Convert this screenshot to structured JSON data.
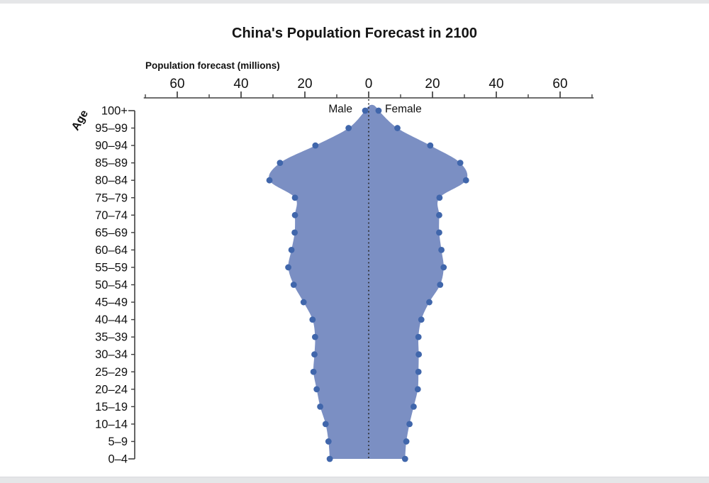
{
  "page": {
    "title": "China's Population Forecast in 2100"
  },
  "chart_data": {
    "type": "area",
    "variant": "population-pyramid",
    "title": "China's Population Forecast in 2100",
    "x_axis": {
      "label": "Population forecast (millions)",
      "tick_labels": [
        "60",
        "40",
        "20",
        "0",
        "20",
        "40",
        "60"
      ],
      "tick_values": [
        -60,
        -40,
        -20,
        0,
        20,
        40,
        60
      ],
      "minor_tick_values": [
        -70,
        -50,
        -30,
        -10,
        10,
        30,
        50,
        70
      ],
      "range": [
        -70.5,
        70.5
      ],
      "grid": false
    },
    "y_axis": {
      "label": "Age",
      "categories": [
        "100+",
        "95–99",
        "90–94",
        "85–89",
        "80–84",
        "75–79",
        "70–74",
        "65–69",
        "60–64",
        "55–59",
        "50–54",
        "45–49",
        "40–44",
        "35–39",
        "30–34",
        "25–29",
        "20–24",
        "15–19",
        "10–14",
        "5–9",
        "0–4"
      ]
    },
    "series": [
      {
        "name": "Male",
        "side": "left",
        "values": [
          1.1,
          6.3,
          16.7,
          27.8,
          31.1,
          23.1,
          23.1,
          23.2,
          24.2,
          25.2,
          23.5,
          20.4,
          17.6,
          16.8,
          17.0,
          17.3,
          16.3,
          15.2,
          13.5,
          12.6,
          12.2
        ]
      },
      {
        "name": "Female",
        "side": "right",
        "values": [
          3.1,
          9.0,
          19.3,
          28.7,
          30.5,
          22.2,
          22.1,
          22.1,
          22.8,
          23.5,
          22.4,
          19.0,
          16.5,
          15.6,
          15.7,
          15.6,
          15.4,
          14.1,
          12.8,
          11.8,
          11.4
        ]
      }
    ],
    "legend": {
      "male_label": "Male",
      "female_label": "Female",
      "position": "top-center-split"
    },
    "center_line": true,
    "colors": {
      "area_fill": "#7b8fc3",
      "point": "#4066ab",
      "axis": "#3f3f3f",
      "text": "#111111",
      "center_line": "#2a2a2a"
    }
  }
}
